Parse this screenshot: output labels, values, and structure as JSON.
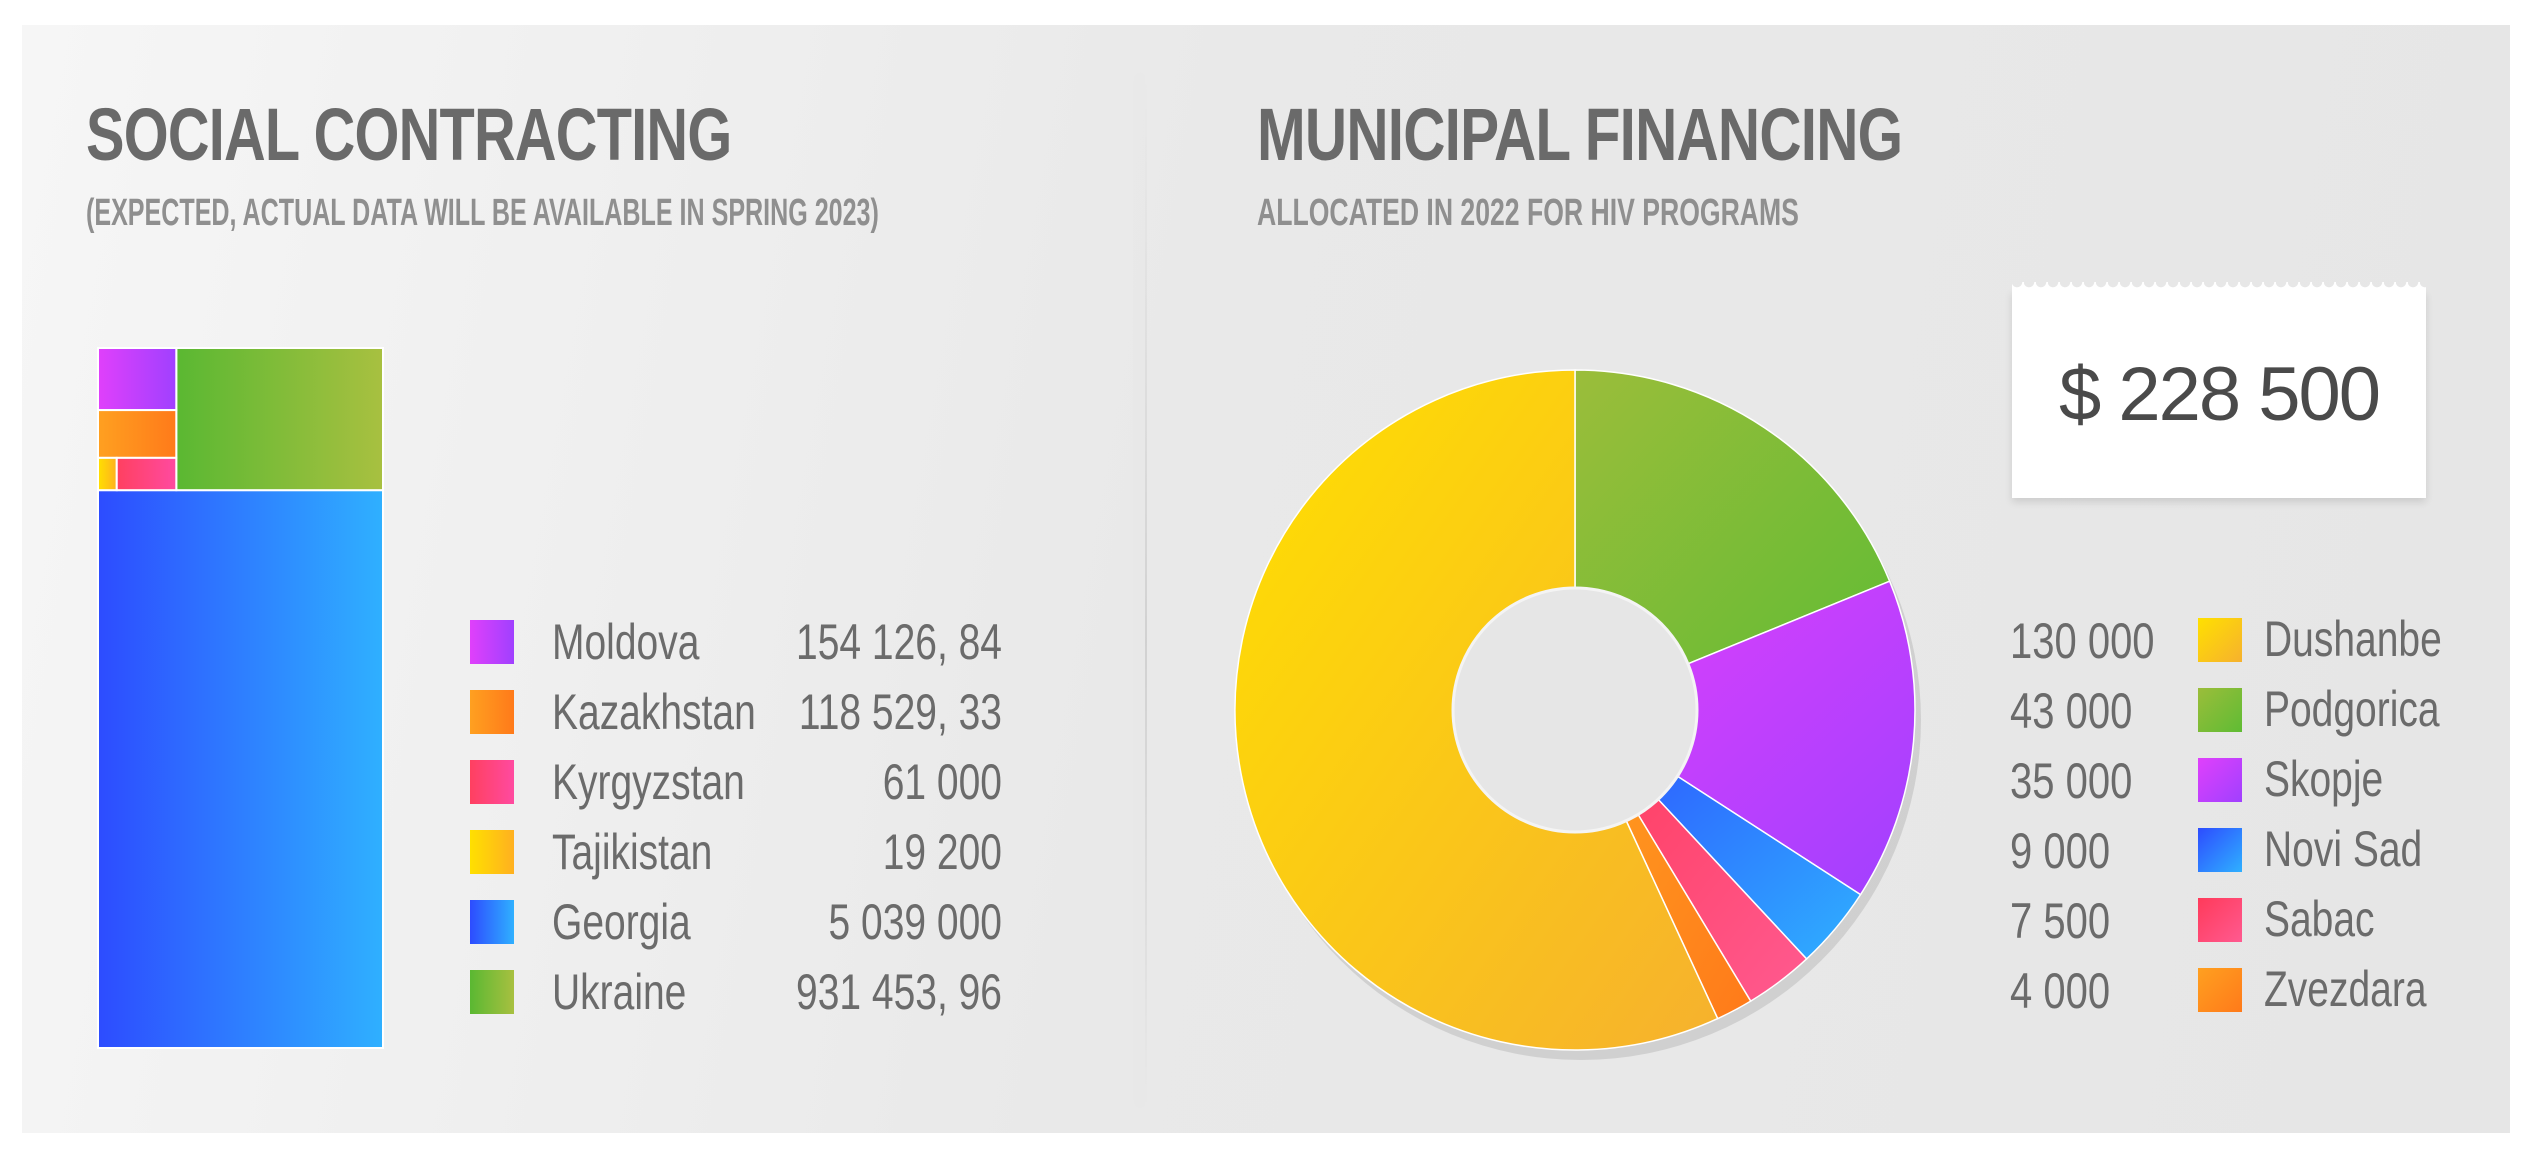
{
  "left": {
    "title": "SOCIAL CONTRACTING",
    "subtitle": "(EXPECTED, ACTUAL DATA WILL BE AVAILABLE IN SPRING 2023)"
  },
  "right": {
    "title": "MUNICIPAL FINANCING",
    "subtitle": "ALLOCATED IN 2022 FOR HIV PROGRAMS",
    "total": "$ 228 500"
  },
  "chart_data": [
    {
      "type": "treemap",
      "title": "SOCIAL CONTRACTING",
      "subtitle": "(EXPECTED, ACTUAL DATA WILL BE AVAILABLE IN SPRING 2023)",
      "categories": [
        "Moldova",
        "Kazakhstan",
        "Kyrgyzstan",
        "Tajikistan",
        "Georgia",
        "Ukraine"
      ],
      "values": [
        154126.84,
        118529.33,
        61000,
        19200,
        5039000,
        931453.96
      ],
      "value_labels": [
        "154 126, 84",
        "118 529, 33",
        "61 000",
        "19 200",
        "5 039 000",
        "931 453, 96"
      ],
      "colors": [
        [
          "#e040fb",
          "#a040ff"
        ],
        [
          "#ffa020",
          "#ff7a1a"
        ],
        [
          "#ff4060",
          "#ff4aa0"
        ],
        [
          "#ffe000",
          "#ffb020"
        ],
        [
          "#2d4cff",
          "#2fb0ff"
        ],
        [
          "#5ab832",
          "#a8c040"
        ]
      ],
      "legend": "right"
    },
    {
      "type": "pie",
      "title": "MUNICIPAL FINANCING",
      "subtitle": "ALLOCATED IN 2022 FOR HIV PROGRAMS",
      "total_label": "$ 228 500",
      "categories": [
        "Dushanbe",
        "Podgorica",
        "Skopje",
        "Novi Sad",
        "Sabac",
        "Zvezdara"
      ],
      "values": [
        130000,
        43000,
        35000,
        9000,
        7500,
        4000
      ],
      "value_labels": [
        "130 000",
        "43 000",
        "35 000",
        "9 000",
        "7 500",
        "4 000"
      ],
      "colors": [
        [
          "#ffe000",
          "#f6b12e"
        ],
        [
          "#9bbd3a",
          "#5fbc34"
        ],
        [
          "#e040fb",
          "#a040ff"
        ],
        [
          "#2d4cff",
          "#2fb0ff"
        ],
        [
          "#ff3a5a",
          "#ff5a90"
        ],
        [
          "#ffa020",
          "#ff7a1a"
        ]
      ],
      "donut": true,
      "legend": "right"
    }
  ]
}
